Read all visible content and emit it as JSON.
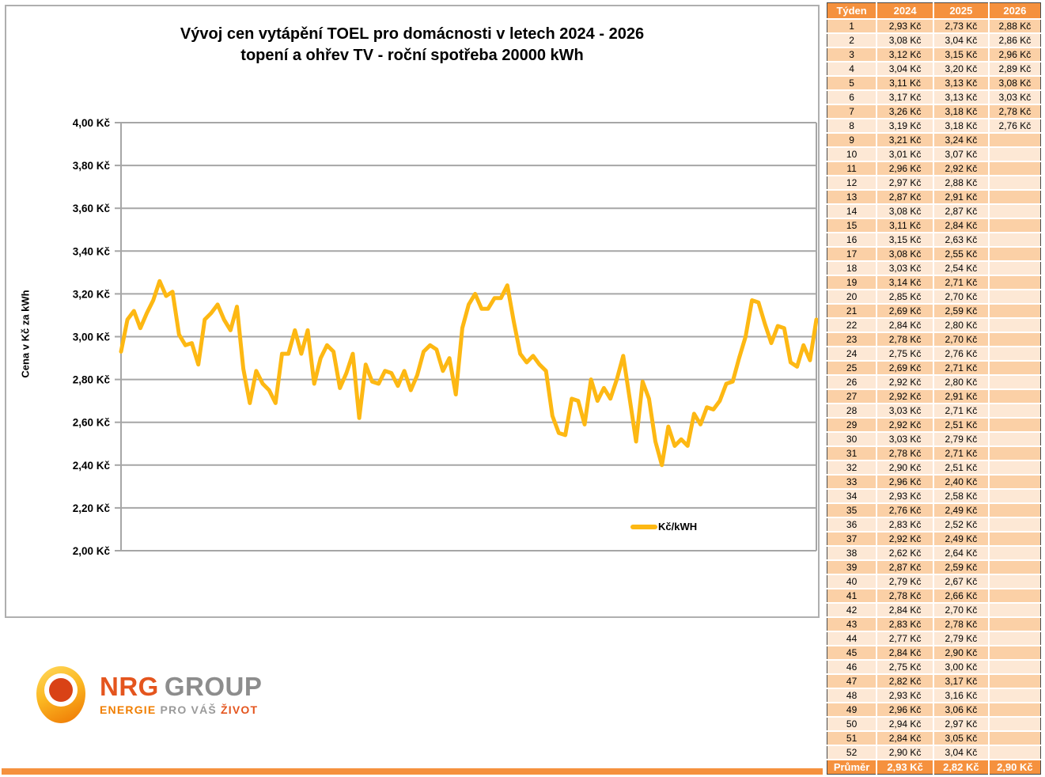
{
  "chart": {
    "title_line1": "Vývoj cen vytápění TOEL pro domácnosti v letech 2024 - 2026",
    "title_line2": "topení a ohřev TV - roční spotřeba 20000 kWh",
    "y_axis_title": "Cena v Kč za kWh",
    "legend_label": "Kč/kWH",
    "y_ticks": [
      "4,00 Kč",
      "3,80 Kč",
      "3,60 Kč",
      "3,40 Kč",
      "3,20 Kč",
      "3,00 Kč",
      "2,80 Kč",
      "2,60 Kč",
      "2,40 Kč",
      "2,20 Kč",
      "2,00 Kč"
    ],
    "line_color": "#FDB813",
    "gridline_color": "#A6A6A6"
  },
  "chart_data": {
    "type": "line",
    "title": "Vývoj cen vytápění TOEL pro domácnosti v letech 2024 - 2026 / topení a ohřev TV - roční spotřeba 20000 kWh",
    "xlabel": "",
    "ylabel": "Cena v Kč za kWh",
    "ylim": [
      2.0,
      4.0
    ],
    "ytick_step": 0.2,
    "grid": "horizontal",
    "legend_position": "inside-right",
    "x_description": "týdenní ceny zřetězené: 2024 týden 1-52, 2025 týden 1-52, 2026 týden 1-5",
    "series": [
      {
        "name": "Kč/kWH",
        "color": "#FDB813",
        "values": [
          2.93,
          3.08,
          3.12,
          3.04,
          3.11,
          3.17,
          3.26,
          3.19,
          3.21,
          3.01,
          2.96,
          2.97,
          2.87,
          3.08,
          3.11,
          3.15,
          3.08,
          3.03,
          3.14,
          2.85,
          2.69,
          2.84,
          2.78,
          2.75,
          2.69,
          2.92,
          2.92,
          3.03,
          2.92,
          3.03,
          2.78,
          2.9,
          2.96,
          2.93,
          2.76,
          2.83,
          2.92,
          2.62,
          2.87,
          2.79,
          2.78,
          2.84,
          2.83,
          2.77,
          2.84,
          2.75,
          2.82,
          2.93,
          2.96,
          2.94,
          2.84,
          2.9,
          2.73,
          3.04,
          3.15,
          3.2,
          3.13,
          3.13,
          3.18,
          3.18,
          3.24,
          3.07,
          2.92,
          2.88,
          2.91,
          2.87,
          2.84,
          2.63,
          2.55,
          2.54,
          2.71,
          2.7,
          2.59,
          2.8,
          2.7,
          2.76,
          2.71,
          2.8,
          2.91,
          2.71,
          2.51,
          2.79,
          2.71,
          2.51,
          2.4,
          2.58,
          2.49,
          2.52,
          2.49,
          2.64,
          2.59,
          2.67,
          2.66,
          2.7,
          2.78,
          2.79,
          2.9,
          3.0,
          3.17,
          3.16,
          3.06,
          2.97,
          3.05,
          3.04,
          2.88,
          2.86,
          2.96,
          2.89,
          3.08
        ]
      }
    ]
  },
  "table": {
    "header": [
      "Týden",
      "2024",
      "2025",
      "2026"
    ],
    "rows": [
      [
        "1",
        "2,93 Kč",
        "2,73 Kč",
        "2,88 Kč"
      ],
      [
        "2",
        "3,08 Kč",
        "3,04 Kč",
        "2,86 Kč"
      ],
      [
        "3",
        "3,12 Kč",
        "3,15 Kč",
        "2,96 Kč"
      ],
      [
        "4",
        "3,04 Kč",
        "3,20 Kč",
        "2,89 Kč"
      ],
      [
        "5",
        "3,11 Kč",
        "3,13 Kč",
        "3,08 Kč"
      ],
      [
        "6",
        "3,17 Kč",
        "3,13 Kč",
        "3,03 Kč"
      ],
      [
        "7",
        "3,26 Kč",
        "3,18 Kč",
        "2,78 Kč"
      ],
      [
        "8",
        "3,19 Kč",
        "3,18 Kč",
        "2,76 Kč"
      ],
      [
        "9",
        "3,21 Kč",
        "3,24 Kč",
        ""
      ],
      [
        "10",
        "3,01 Kč",
        "3,07 Kč",
        ""
      ],
      [
        "11",
        "2,96 Kč",
        "2,92 Kč",
        ""
      ],
      [
        "12",
        "2,97 Kč",
        "2,88 Kč",
        ""
      ],
      [
        "13",
        "2,87 Kč",
        "2,91 Kč",
        ""
      ],
      [
        "14",
        "3,08 Kč",
        "2,87 Kč",
        ""
      ],
      [
        "15",
        "3,11 Kč",
        "2,84 Kč",
        ""
      ],
      [
        "16",
        "3,15 Kč",
        "2,63 Kč",
        ""
      ],
      [
        "17",
        "3,08 Kč",
        "2,55 Kč",
        ""
      ],
      [
        "18",
        "3,03 Kč",
        "2,54 Kč",
        ""
      ],
      [
        "19",
        "3,14 Kč",
        "2,71 Kč",
        ""
      ],
      [
        "20",
        "2,85 Kč",
        "2,70 Kč",
        ""
      ],
      [
        "21",
        "2,69 Kč",
        "2,59 Kč",
        ""
      ],
      [
        "22",
        "2,84 Kč",
        "2,80 Kč",
        ""
      ],
      [
        "23",
        "2,78 Kč",
        "2,70 Kč",
        ""
      ],
      [
        "24",
        "2,75 Kč",
        "2,76 Kč",
        ""
      ],
      [
        "25",
        "2,69 Kč",
        "2,71 Kč",
        ""
      ],
      [
        "26",
        "2,92 Kč",
        "2,80 Kč",
        ""
      ],
      [
        "27",
        "2,92 Kč",
        "2,91 Kč",
        ""
      ],
      [
        "28",
        "3,03 Kč",
        "2,71 Kč",
        ""
      ],
      [
        "29",
        "2,92 Kč",
        "2,51 Kč",
        ""
      ],
      [
        "30",
        "3,03 Kč",
        "2,79 Kč",
        ""
      ],
      [
        "31",
        "2,78 Kč",
        "2,71 Kč",
        ""
      ],
      [
        "32",
        "2,90 Kč",
        "2,51 Kč",
        ""
      ],
      [
        "33",
        "2,96 Kč",
        "2,40 Kč",
        ""
      ],
      [
        "34",
        "2,93 Kč",
        "2,58 Kč",
        ""
      ],
      [
        "35",
        "2,76 Kč",
        "2,49 Kč",
        ""
      ],
      [
        "36",
        "2,83 Kč",
        "2,52 Kč",
        ""
      ],
      [
        "37",
        "2,92 Kč",
        "2,49 Kč",
        ""
      ],
      [
        "38",
        "2,62 Kč",
        "2,64 Kč",
        ""
      ],
      [
        "39",
        "2,87 Kč",
        "2,59 Kč",
        ""
      ],
      [
        "40",
        "2,79 Kč",
        "2,67 Kč",
        ""
      ],
      [
        "41",
        "2,78 Kč",
        "2,66 Kč",
        ""
      ],
      [
        "42",
        "2,84 Kč",
        "2,70 Kč",
        ""
      ],
      [
        "43",
        "2,83 Kč",
        "2,78 Kč",
        ""
      ],
      [
        "44",
        "2,77 Kč",
        "2,79 Kč",
        ""
      ],
      [
        "45",
        "2,84 Kč",
        "2,90 Kč",
        ""
      ],
      [
        "46",
        "2,75 Kč",
        "3,00 Kč",
        ""
      ],
      [
        "47",
        "2,82 Kč",
        "3,17 Kč",
        ""
      ],
      [
        "48",
        "2,93 Kč",
        "3,16 Kč",
        ""
      ],
      [
        "49",
        "2,96 Kč",
        "3,06 Kč",
        ""
      ],
      [
        "50",
        "2,94 Kč",
        "2,97 Kč",
        ""
      ],
      [
        "51",
        "2,84 Kč",
        "3,05 Kč",
        ""
      ],
      [
        "52",
        "2,90 Kč",
        "3,04 Kč",
        ""
      ]
    ],
    "footer": [
      "Průměr",
      "2,93 Kč",
      "2,82 Kč",
      "2,90 Kč"
    ]
  },
  "logo": {
    "name_part1": "NRG",
    "name_part2": "GROUP",
    "tagline_part1": "ENERGIE",
    "tagline_part2": "PRO VÁŠ",
    "tagline_part3": "ŽIVOT"
  },
  "colors": {
    "table_header_bg": "#F5913E",
    "table_row_odd": "#FBD0A6",
    "table_row_even": "#FDE8D5",
    "accent_bar": "#F5913E",
    "line": "#FDB813",
    "gridline": "#A6A6A6"
  }
}
